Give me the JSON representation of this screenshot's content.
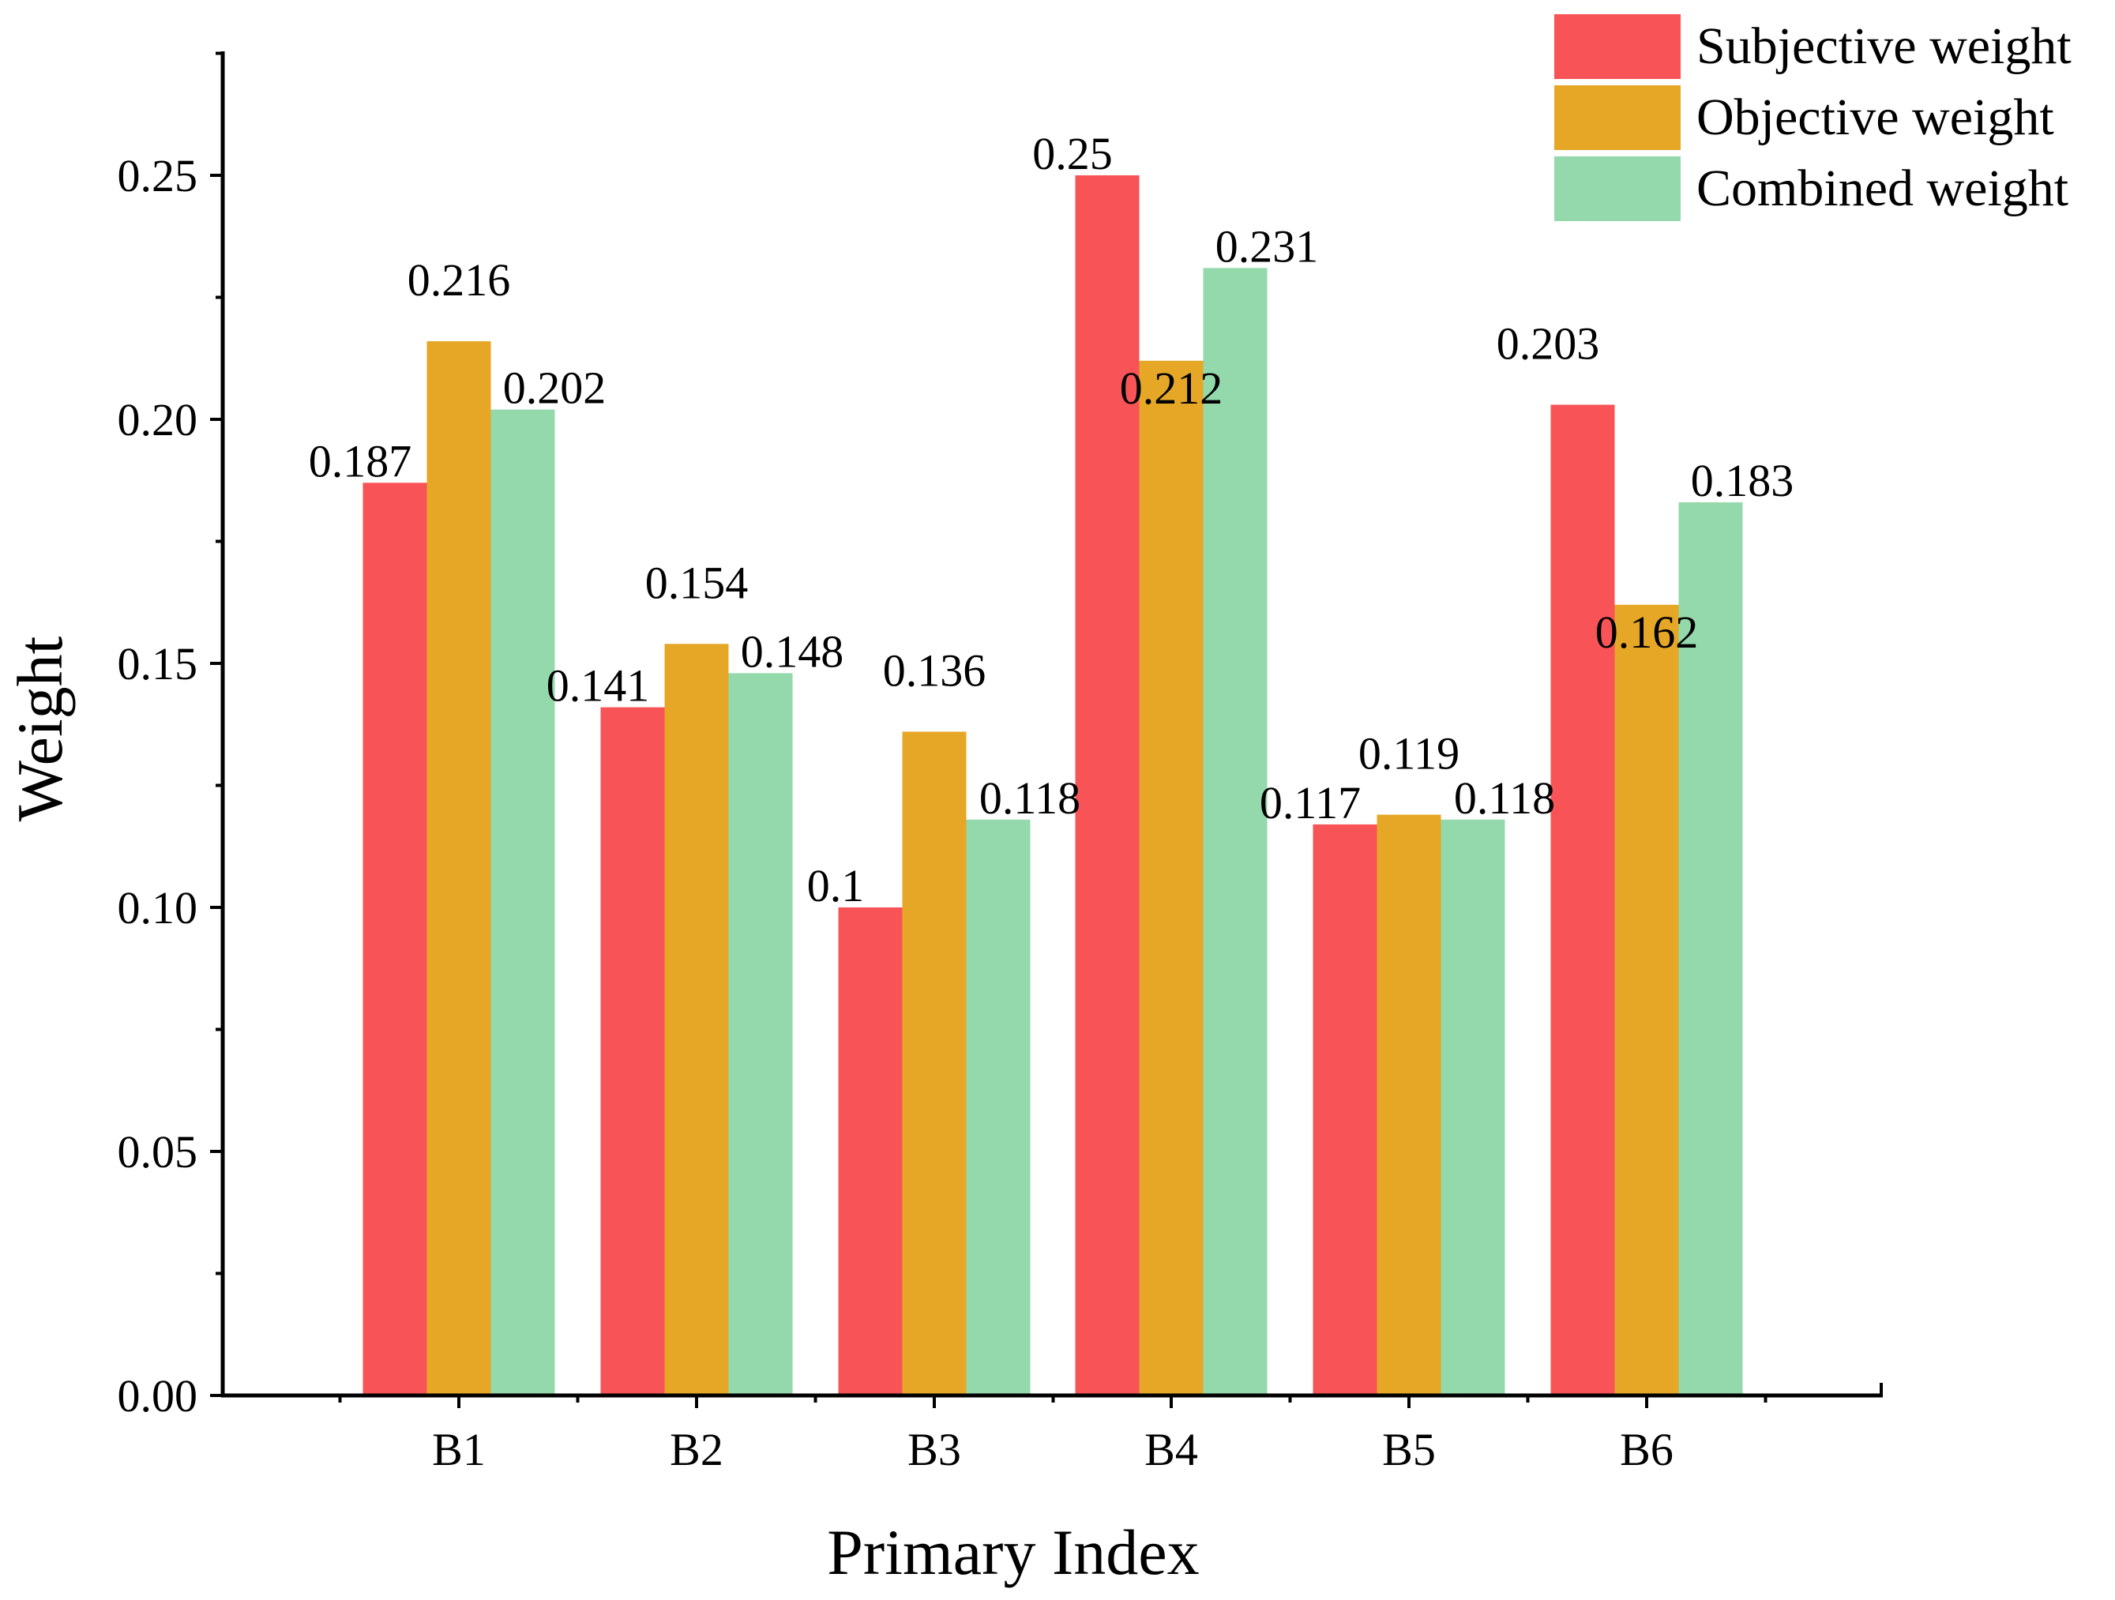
{
  "chart_data": {
    "type": "bar",
    "title": "",
    "xlabel": "Primary Index",
    "ylabel": "Weight",
    "categories": [
      "B1",
      "B2",
      "B3",
      "B4",
      "B5",
      "B6"
    ],
    "ylim": [
      0,
      0.275
    ],
    "yticks": [
      0.0,
      0.05,
      0.1,
      0.15,
      0.2,
      0.25
    ],
    "ytick_labels": [
      "0.00",
      "0.05",
      "0.10",
      "0.15",
      "0.20",
      "0.25"
    ],
    "grid": false,
    "legend_position": "top-right",
    "series": [
      {
        "name": "Subjective weight",
        "color": "#f85356",
        "values": [
          0.187,
          0.141,
          0.1,
          0.25,
          0.117,
          0.203
        ],
        "labels": [
          "0.187",
          "0.141",
          "0.1",
          "0.25",
          "0.117",
          "0.203"
        ]
      },
      {
        "name": "Objective weight",
        "color": "#e6a726",
        "values": [
          0.216,
          0.154,
          0.136,
          0.212,
          0.119,
          0.162
        ],
        "labels": [
          "0.216",
          "0.154",
          "0.136",
          "0.212",
          "0.119",
          "0.162"
        ]
      },
      {
        "name": "Combined weight",
        "color": "#93d9ab",
        "values": [
          0.202,
          0.148,
          0.118,
          0.231,
          0.118,
          0.183
        ],
        "labels": [
          "0.202",
          "0.148",
          "0.118",
          "0.231",
          "0.118",
          "0.183"
        ]
      }
    ]
  }
}
